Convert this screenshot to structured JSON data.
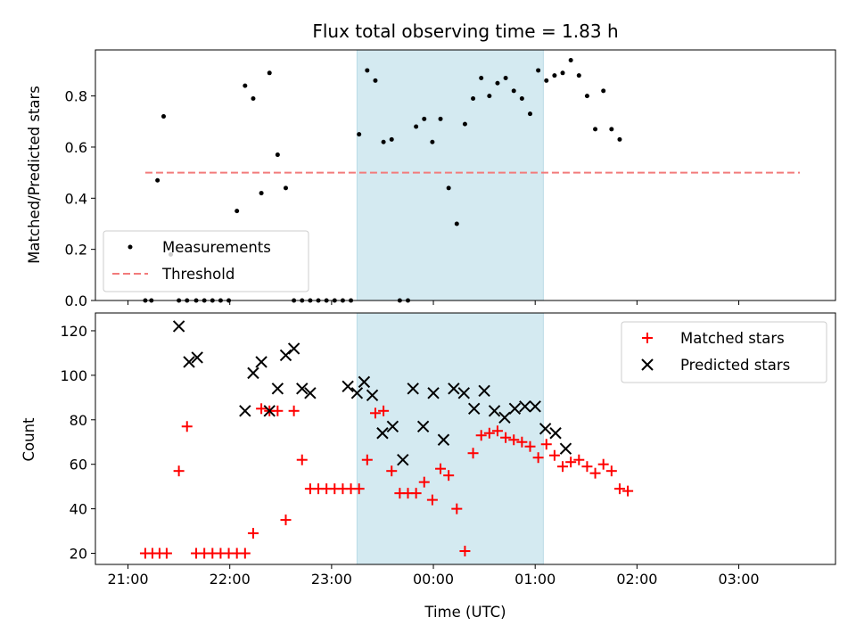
{
  "chart_data": [
    {
      "type": "scatter",
      "title": "Flux total observing time = 1.83 h",
      "ylabel": "Matched/Predicted stars",
      "xlabel": "",
      "x_unit": "hours since 21:00 UTC",
      "xlim": [
        -0.32,
        6.95
      ],
      "ylim": [
        0,
        0.98
      ],
      "yticks": [
        0.0,
        0.2,
        0.4,
        0.6,
        0.8
      ],
      "ytick_labels": [
        "0.0",
        "0.2",
        "0.4",
        "0.6",
        "0.8"
      ],
      "grid": false,
      "legend_position": "lower-left",
      "highlight_span": [
        2.25,
        4.08
      ],
      "highlight_color": "#d4eaf1",
      "threshold": {
        "name": "Threshold",
        "y": 0.5,
        "x_range": [
          0.17,
          6.6
        ],
        "color": "#f27b7b"
      },
      "series": [
        {
          "name": "Measurements",
          "color": "#000000",
          "x": [
            0.17,
            0.23,
            0.29,
            0.35,
            0.42,
            0.5,
            0.58,
            0.67,
            0.75,
            0.83,
            0.91,
            0.99,
            1.07,
            1.15,
            1.23,
            1.31,
            1.39,
            1.47,
            1.55,
            1.63,
            1.71,
            1.79,
            1.87,
            1.95,
            2.03,
            2.11,
            2.19,
            2.27,
            2.35,
            2.43,
            2.51,
            2.59,
            2.67,
            2.75,
            2.83,
            2.91,
            2.99,
            3.07,
            3.15,
            3.23,
            3.31,
            3.39,
            3.47,
            3.55,
            3.63,
            3.71,
            3.79,
            3.87,
            3.95,
            4.03,
            4.11,
            4.19,
            4.27,
            4.35,
            4.43,
            4.51,
            4.59,
            4.67,
            4.75,
            4.83
          ],
          "y": [
            0.0,
            0.0,
            0.47,
            0.72,
            0.18,
            0.0,
            0.0,
            0.0,
            0.0,
            0.0,
            0.0,
            0.0,
            0.35,
            0.84,
            0.79,
            0.42,
            0.89,
            0.57,
            0.44,
            0.0,
            0.0,
            0.0,
            0.0,
            0.0,
            0.0,
            0.0,
            0.0,
            0.65,
            0.9,
            0.86,
            0.62,
            0.63,
            0.0,
            0.0,
            0.68,
            0.71,
            0.62,
            0.71,
            0.44,
            0.3,
            0.69,
            0.79,
            0.87,
            0.8,
            0.85,
            0.87,
            0.82,
            0.79,
            0.73,
            0.9,
            0.86,
            0.88,
            0.89,
            0.94,
            0.88,
            0.8,
            0.67,
            0.82,
            0.67,
            0.63
          ]
        }
      ]
    },
    {
      "type": "scatter",
      "title": "",
      "ylabel": "Count",
      "xlabel": "Time (UTC)",
      "x_unit": "hours since 21:00 UTC",
      "xlim": [
        -0.32,
        6.95
      ],
      "ylim": [
        15,
        128
      ],
      "yticks": [
        20,
        40,
        60,
        80,
        100,
        120
      ],
      "xticks": [
        0,
        1,
        2,
        3,
        4,
        5,
        6
      ],
      "xtick_labels": [
        "21:00",
        "22:00",
        "23:00",
        "00:00",
        "01:00",
        "02:00",
        "03:00"
      ],
      "grid": false,
      "legend_position": "top-right",
      "highlight_span": [
        2.25,
        4.08
      ],
      "highlight_color": "#d4eaf1",
      "series": [
        {
          "name": "Matched stars",
          "marker": "plus",
          "color": "#ff0000",
          "x": [
            0.17,
            0.24,
            0.31,
            0.38,
            0.5,
            0.58,
            0.67,
            0.75,
            0.83,
            0.91,
            0.99,
            1.07,
            1.15,
            1.23,
            1.31,
            1.39,
            1.47,
            1.55,
            1.63,
            1.71,
            1.79,
            1.87,
            1.95,
            2.03,
            2.11,
            2.19,
            2.27,
            2.35,
            2.43,
            2.51,
            2.59,
            2.67,
            2.75,
            2.83,
            2.91,
            2.99,
            3.07,
            3.15,
            3.23,
            3.31,
            3.39,
            3.47,
            3.55,
            3.63,
            3.71,
            3.79,
            3.87,
            3.95,
            4.03,
            4.11,
            4.19,
            4.27,
            4.35,
            4.43,
            4.51,
            4.59,
            4.67,
            4.75,
            4.83,
            4.91
          ],
          "y": [
            20,
            20,
            20,
            20,
            57,
            77,
            20,
            20,
            20,
            20,
            20,
            20,
            20,
            29,
            85,
            84,
            84,
            35,
            84,
            62,
            49,
            49,
            49,
            49,
            49,
            49,
            49,
            62,
            83,
            84,
            57,
            47,
            47,
            47,
            52,
            44,
            58,
            55,
            40,
            21,
            65,
            73,
            74,
            75,
            72,
            71,
            70,
            68,
            63,
            69,
            64,
            59,
            61,
            62,
            59,
            56,
            60,
            57,
            49,
            48
          ]
        },
        {
          "name": "Predicted stars",
          "marker": "x",
          "color": "#000000",
          "x": [
            0.5,
            0.6,
            0.68,
            1.15,
            1.23,
            1.31,
            1.39,
            1.47,
            1.55,
            1.63,
            1.71,
            1.79,
            2.16,
            2.25,
            2.32,
            2.4,
            2.5,
            2.6,
            2.7,
            2.8,
            2.9,
            3.0,
            3.1,
            3.2,
            3.3,
            3.4,
            3.5,
            3.6,
            3.7,
            3.8,
            3.9,
            4.0,
            4.1,
            4.2,
            4.3
          ],
          "y": [
            122,
            106,
            108,
            84,
            101,
            106,
            84,
            94,
            109,
            112,
            94,
            92,
            95,
            92,
            97,
            91,
            74,
            77,
            62,
            94,
            77,
            92,
            71,
            94,
            92,
            85,
            93,
            84,
            81,
            85,
            86,
            86,
            76,
            74,
            67
          ]
        }
      ]
    }
  ]
}
